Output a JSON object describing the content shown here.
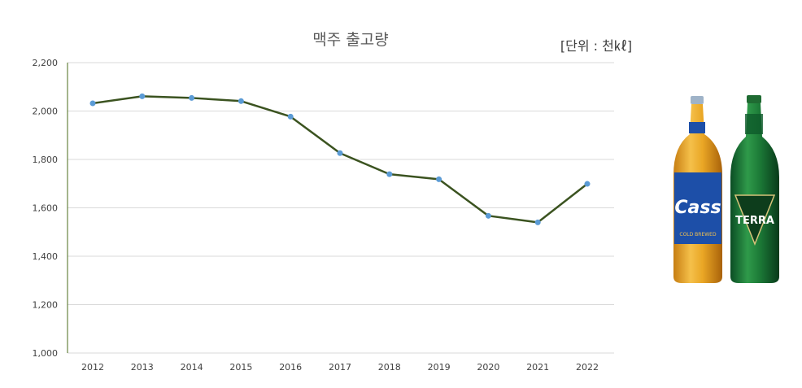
{
  "chart_data": {
    "type": "line",
    "title": "맥주 출고량",
    "unit_label": "[단위 : 천㎘]",
    "xlabel": "",
    "ylabel": "",
    "categories": [
      "2012",
      "2013",
      "2014",
      "2015",
      "2016",
      "2017",
      "2018",
      "2019",
      "2020",
      "2021",
      "2022"
    ],
    "series": [
      {
        "values": [
          2032,
          2061,
          2054,
          2041,
          1977,
          1826,
          1739,
          1718,
          1567,
          1540,
          1699
        ]
      }
    ],
    "ylim": [
      1000,
      2200
    ],
    "yticks": [
      1000,
      1200,
      1400,
      1600,
      1800,
      2000,
      2200
    ],
    "ytick_labels": [
      "1,000",
      "1,200",
      "1,400",
      "1,600",
      "1,800",
      "2,000",
      "2,200"
    ],
    "grid": true,
    "legend": "none",
    "colors": {
      "line": "#3b5320",
      "marker": "#5b9bd5",
      "grid": "#d9d9d9"
    }
  },
  "images": {
    "cass_label": "Cass",
    "cass_sub": "COLD BREWED",
    "terra_label": "TERRA"
  }
}
